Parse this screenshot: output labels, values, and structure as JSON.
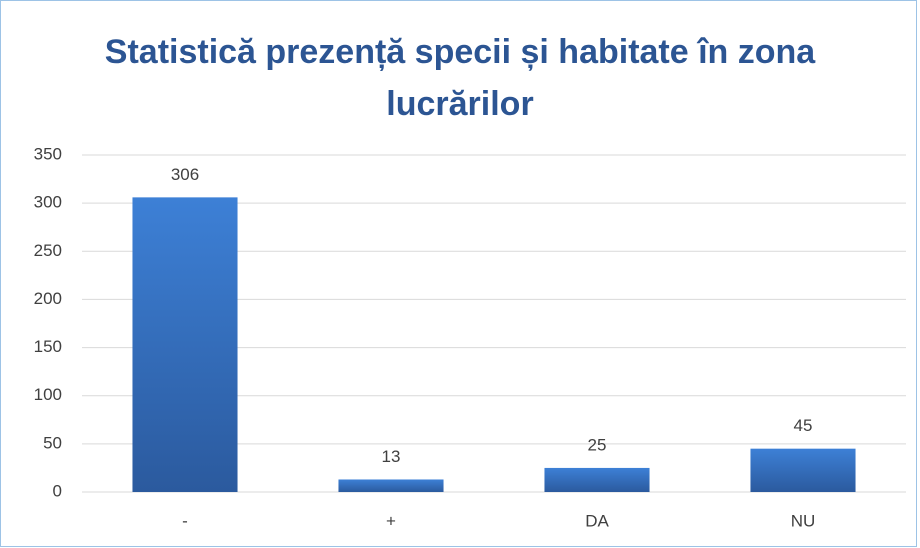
{
  "chart_data": {
    "type": "bar",
    "title": "Statistică prezență specii și habitate în zona lucrărilor",
    "categories": [
      "-",
      "+",
      "DA",
      "NU"
    ],
    "values": [
      306,
      13,
      25,
      45
    ],
    "color": "url(#barGrad)",
    "ylim": [
      0,
      350
    ],
    "yticks": [
      0,
      50,
      100,
      150,
      200,
      250,
      300,
      350
    ],
    "grid": true,
    "data_labels": true
  }
}
